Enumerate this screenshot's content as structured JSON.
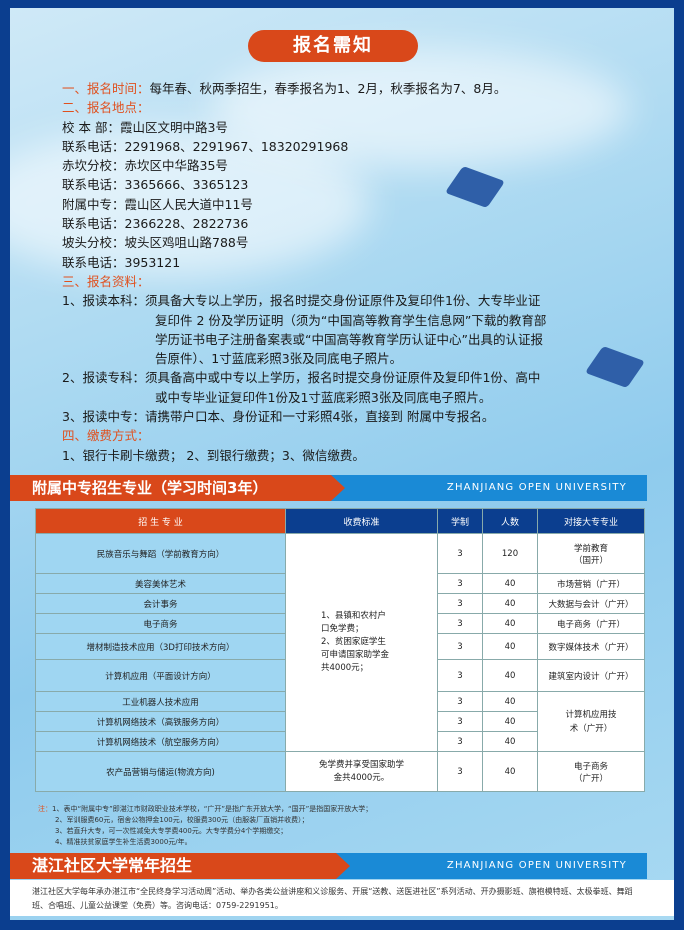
{
  "title": "报名需知",
  "info": [
    {
      "label": "一、报名时间：",
      "text": "每年春、秋两季招生，春季报名为1、2月，秋季报名为7、8月。"
    },
    {
      "label": "二、报名地点：",
      "text": ""
    },
    {
      "label": "",
      "text": "校 本 部：霞山区文明中路3号"
    },
    {
      "label": "",
      "text": "联系电话：2291968、2291967、18320291968"
    },
    {
      "label": "",
      "text": "赤坎分校：赤坎区中华路35号"
    },
    {
      "label": "",
      "text": "联系电话：3365666、3365123"
    },
    {
      "label": "",
      "text": "附属中专：霞山区人民大道中11号"
    },
    {
      "label": "",
      "text": "联系电话：2366228、2822736"
    },
    {
      "label": "",
      "text": "坡头分校：坡头区鸡咀山路788号"
    },
    {
      "label": "",
      "text": "联系电话：3953121"
    },
    {
      "label": "三、报名资料：",
      "text": ""
    }
  ],
  "materials": [
    "1、报读本科：须具备大专以上学历，报名时提交身份证原件及复印件1份、大专毕业证",
    "复印件 2 份及学历证明（须为“中国高等教育学生信息网”下载的教育部",
    "学历证书电子注册备案表或“中国高等教育学历认证中心”出具的认证报",
    "告原件）、1寸蓝底彩照3张及同底电子照片。",
    "2、报读专科：须具备高中或中专以上学历，报名时提交身份证原件及复印件1份、高中",
    "或中专毕业证复印件1份及1寸蓝底彩照3张及同底电子照片。",
    "3、报读中专：请携带户口本、身份证和一寸彩照4张，直接到 附属中专报名。"
  ],
  "payment": {
    "label": "四、缴费方式：",
    "text": "1、银行卡刷卡缴费； 2、到银行缴费；3、微信缴费。"
  },
  "banner1": {
    "title": "附属中专招生专业（学习时间3年）",
    "en": "ZHANJIANG OPEN UNIVERSITY"
  },
  "table": {
    "headers": [
      "招 生 专 业",
      "收费标准",
      "学制",
      "人数",
      "对接大专专业"
    ],
    "fee_1": [
      "1、县镇和农村户",
      "口免学费；",
      "2、贫困家庭学生",
      "可申请国家助学金",
      "共4000元；"
    ],
    "fee_2": "免学费并享受国家助学金共4000元。",
    "rows": [
      {
        "major": "民族音乐与舞蹈（学前教育方向）",
        "years": "3",
        "count": "120",
        "target": "学前教育（国开）"
      },
      {
        "major": "美容美体艺术",
        "years": "3",
        "count": "40",
        "target": "市场营销（广开）"
      },
      {
        "major": "会计事务",
        "years": "3",
        "count": "40",
        "target": "大数据与会计（广开）"
      },
      {
        "major": "电子商务",
        "years": "3",
        "count": "40",
        "target": "电子商务（广开）"
      },
      {
        "major": "增材制造技术应用（3D打印技术方向）",
        "years": "3",
        "count": "40",
        "target": "数字媒体技术（广开）"
      },
      {
        "major": "计算机应用（平面设计方向）",
        "years": "3",
        "count": "40",
        "target": "建筑室内设计（广开）"
      },
      {
        "major": "工业机器人技术应用",
        "years": "3",
        "count": "40",
        "target": "计算机应用技术（广开）"
      },
      {
        "major": "计算机网络技术（高铁服务方向）",
        "years": "3",
        "count": "40",
        "target": ""
      },
      {
        "major": "计算机网络技术（航空服务方向）",
        "years": "3",
        "count": "40",
        "target": ""
      },
      {
        "major": "农产品营销与储运(物流方向)",
        "years": "3",
        "count": "40",
        "target": "电子商务（广开）"
      }
    ]
  },
  "notes": {
    "label": "注：",
    "items": [
      "1、表中“附属中专”即湛江市财政职业技术学校，“广开”是指广东开放大学，“国开”是指国家开放大学；",
      "2、军训服费60元，宿舍公物押金100元，校服费300元（由服装厂直销并收费）；",
      "3、若直升大专，可一次性减免大专学费400元。大专学费分4个学期缴交；",
      "4、精准扶贫家庭学生补生活费3000元/年。"
    ]
  },
  "banner2": {
    "title": "湛江社区大学常年招生",
    "en": "ZHANJIANG OPEN UNIVERSITY"
  },
  "footer": "湛江社区大学每年承办湛江市“全民终身学习活动周”活动、举办各类公益讲座和义诊服务、开展“送教、送医进社区”系列活动、开办摄影班、旗袍模特班、太极拳班、舞蹈班、合唱班、儿童公益课堂（免费）等。咨询电话：0759-2291951。",
  "colors": {
    "border": "#0b3e8f",
    "accent": "#d9481a",
    "banner_blue": "#1a8ad6",
    "cell_blue": "#9fd6f2"
  }
}
